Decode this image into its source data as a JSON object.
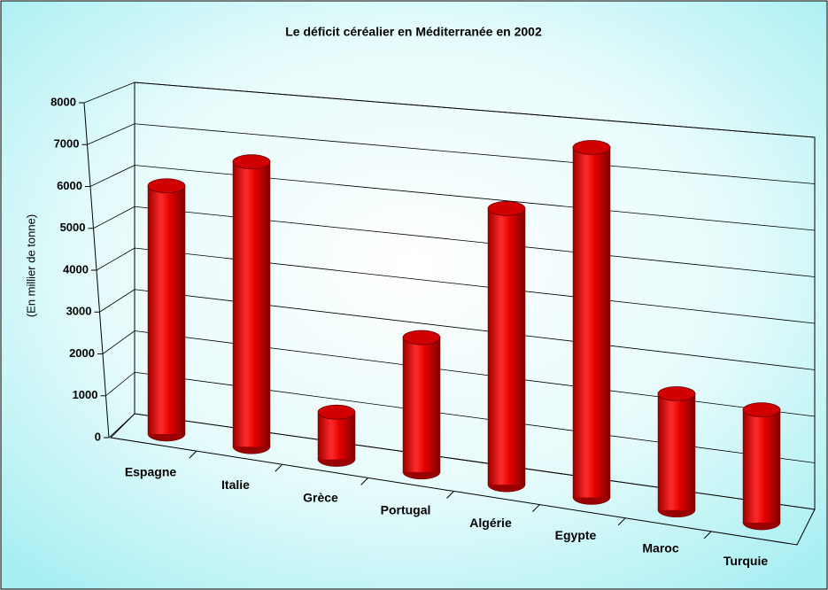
{
  "chart_data": {
    "type": "bar3d",
    "title": "Le déficit céréalier en Méditerranée en 2002",
    "y_label": "(En millier de tonne)",
    "categories": [
      "Espagne",
      "Italie",
      "Grèce",
      "Portugal",
      "Algérie",
      "Egypte",
      "Maroc",
      "Turquie"
    ],
    "values": [
      5900,
      6700,
      1100,
      3100,
      6300,
      7900,
      2600,
      2500
    ],
    "color": "#ff0000",
    "ylim": [
      0,
      8000
    ],
    "yticks": [
      0,
      1000,
      2000,
      3000,
      4000,
      5000,
      6000,
      7000,
      8000
    ],
    "grid": true
  }
}
